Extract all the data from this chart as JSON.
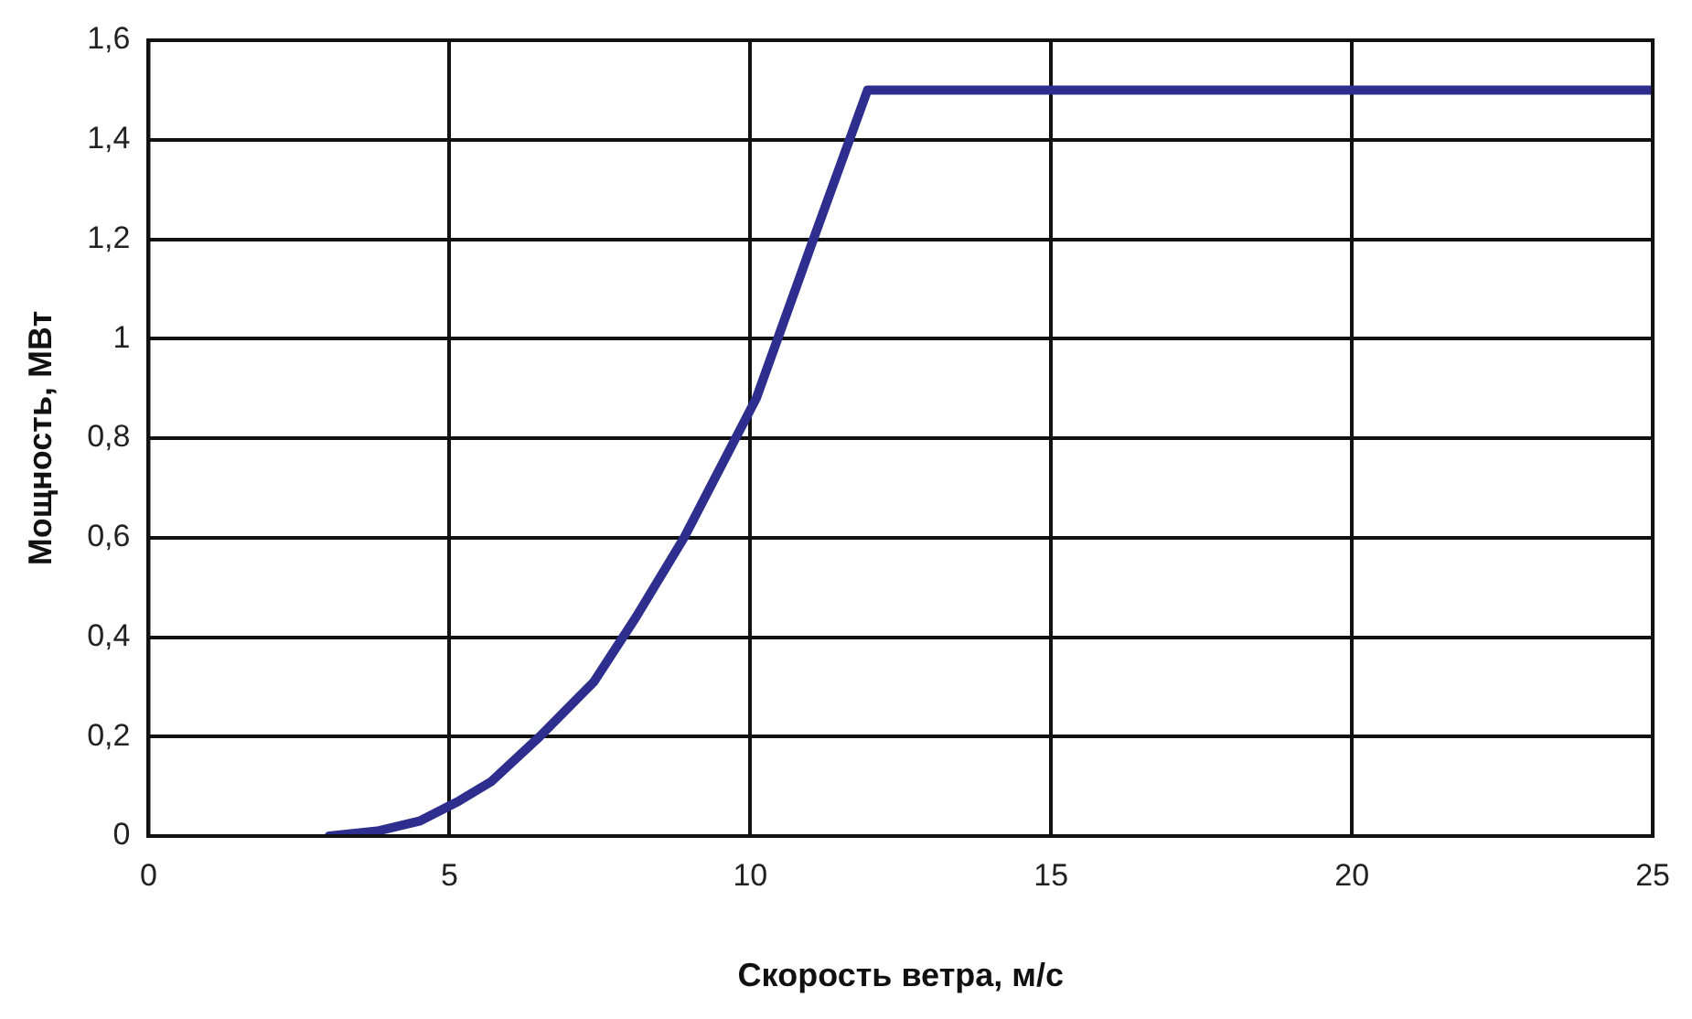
{
  "chart_data": {
    "type": "line",
    "xlabel": "Скорость ветра, м/с",
    "ylabel": "Мощность, МВт",
    "x": [
      3,
      3.8,
      4.5,
      5.15,
      5.7,
      6.5,
      7.4,
      8.1,
      8.9,
      10.1,
      11.05,
      11.95,
      25
    ],
    "series": [
      {
        "color": "#2e2e8f",
        "values": [
          0,
          0.01,
          0.03,
          0.07,
          0.11,
          0.2,
          0.31,
          0.44,
          0.6,
          0.88,
          1.2,
          1.5,
          1.5
        ]
      }
    ],
    "xlim": [
      0,
      25
    ],
    "xticks": [
      0,
      5,
      10,
      15,
      20,
      25
    ],
    "ylim": [
      0,
      1.6
    ],
    "yticks": [
      0,
      {
        "value": 0.2,
        "label": "0,2"
      },
      {
        "value": 0.4,
        "label": "0,4"
      },
      {
        "value": 0.6,
        "label": "0,6"
      },
      {
        "value": 0.8,
        "label": "0,8"
      },
      1,
      {
        "value": 1.2,
        "label": "1,2"
      },
      {
        "value": 1.4,
        "label": "1,4"
      },
      {
        "value": 1.6,
        "label": "1,6"
      }
    ],
    "grid": true,
    "legend": false,
    "marker": "none",
    "line_style": "solid"
  }
}
